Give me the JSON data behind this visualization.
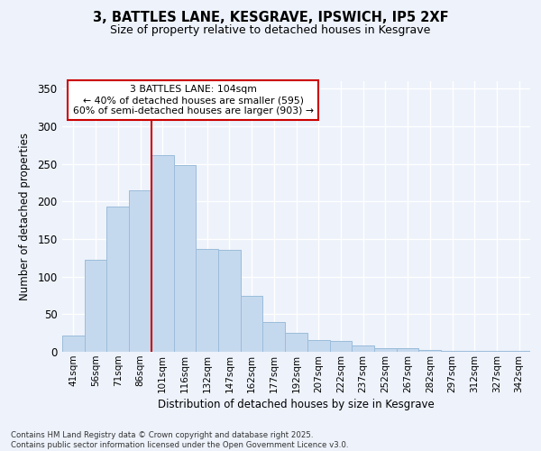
{
  "title_line1": "3, BATTLES LANE, KESGRAVE, IPSWICH, IP5 2XF",
  "title_line2": "Size of property relative to detached houses in Kesgrave",
  "xlabel": "Distribution of detached houses by size in Kesgrave",
  "ylabel": "Number of detached properties",
  "categories": [
    "41sqm",
    "56sqm",
    "71sqm",
    "86sqm",
    "101sqm",
    "116sqm",
    "132sqm",
    "147sqm",
    "162sqm",
    "177sqm",
    "192sqm",
    "207sqm",
    "222sqm",
    "237sqm",
    "252sqm",
    "267sqm",
    "282sqm",
    "297sqm",
    "312sqm",
    "327sqm",
    "342sqm"
  ],
  "values": [
    22,
    122,
    193,
    215,
    262,
    248,
    137,
    136,
    75,
    40,
    25,
    16,
    14,
    9,
    5,
    5,
    3,
    1,
    1,
    1,
    1
  ],
  "bar_color": "#c5d9ee",
  "bar_edgecolor": "#9bbcda",
  "vline_color": "#cc0000",
  "vline_x": 4,
  "annotation_title": "3 BATTLES LANE: 104sqm",
  "annotation_line1": "← 40% of detached houses are smaller (595)",
  "annotation_line2": "60% of semi-detached houses are larger (903) →",
  "ylim": [
    0,
    360
  ],
  "yticks": [
    0,
    50,
    100,
    150,
    200,
    250,
    300,
    350
  ],
  "bg_color": "#edf2fb",
  "grid_color": "#ffffff",
  "footer_line1": "Contains HM Land Registry data © Crown copyright and database right 2025.",
  "footer_line2": "Contains public sector information licensed under the Open Government Licence v3.0."
}
